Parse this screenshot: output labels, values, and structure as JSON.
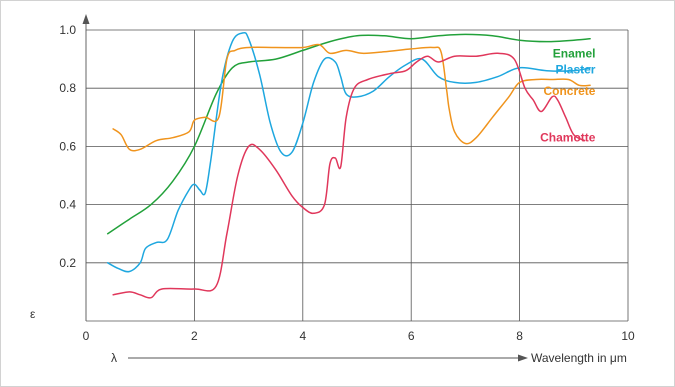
{
  "chart_data": {
    "type": "line",
    "xlabel": "Wavelength in μm",
    "x_symbol": "λ",
    "ylabel": "ε",
    "xlim": [
      0,
      10
    ],
    "ylim": [
      0,
      1.0
    ],
    "x_ticks": [
      0,
      2,
      4,
      6,
      8,
      10
    ],
    "y_ticks": [
      0.2,
      0.4,
      0.6,
      0.8,
      1.0
    ],
    "x_tick_labels": [
      "0",
      "2",
      "4",
      "6",
      "8",
      "10"
    ],
    "y_tick_labels": [
      "0.2",
      "0.4",
      "0.6",
      "0.8",
      "1.0"
    ],
    "grid": true,
    "series": [
      {
        "name": "Enamel",
        "color": "#22a13a",
        "x": [
          0.4,
          0.8,
          1.2,
          1.6,
          2.0,
          2.4,
          2.7,
          3.0,
          3.5,
          4.0,
          4.5,
          5.0,
          5.5,
          6.0,
          6.5,
          7.0,
          7.5,
          8.0,
          8.5,
          9.0,
          9.3
        ],
        "y": [
          0.3,
          0.35,
          0.4,
          0.48,
          0.6,
          0.78,
          0.87,
          0.89,
          0.9,
          0.93,
          0.96,
          0.98,
          0.98,
          0.97,
          0.98,
          0.985,
          0.98,
          0.965,
          0.96,
          0.965,
          0.97
        ]
      },
      {
        "name": "Plaster",
        "color": "#1ea7df",
        "x": [
          0.4,
          0.6,
          0.8,
          1.0,
          1.1,
          1.3,
          1.5,
          1.7,
          1.9,
          2.0,
          2.1,
          2.2,
          2.3,
          2.5,
          2.7,
          2.9,
          3.0,
          3.2,
          3.4,
          3.6,
          3.8,
          4.0,
          4.2,
          4.4,
          4.6,
          4.7,
          4.8,
          5.0,
          5.3,
          5.6,
          5.9,
          6.2,
          6.5,
          6.8,
          7.2,
          7.6,
          8.0,
          8.5,
          9.0,
          9.3
        ],
        "y": [
          0.2,
          0.18,
          0.17,
          0.2,
          0.25,
          0.27,
          0.28,
          0.38,
          0.45,
          0.47,
          0.45,
          0.44,
          0.55,
          0.82,
          0.96,
          0.99,
          0.97,
          0.85,
          0.68,
          0.58,
          0.58,
          0.68,
          0.82,
          0.9,
          0.89,
          0.84,
          0.78,
          0.77,
          0.79,
          0.84,
          0.88,
          0.9,
          0.84,
          0.82,
          0.82,
          0.84,
          0.87,
          0.86,
          0.86,
          0.87
        ]
      },
      {
        "name": "Concrete",
        "color": "#f0941d",
        "x": [
          0.5,
          0.65,
          0.8,
          1.0,
          1.3,
          1.6,
          1.9,
          2.0,
          2.2,
          2.45,
          2.6,
          2.75,
          3.0,
          3.5,
          4.0,
          4.3,
          4.5,
          4.8,
          5.1,
          5.5,
          6.0,
          6.4,
          6.55,
          6.65,
          6.7,
          6.8,
          7.0,
          7.2,
          7.5,
          7.8,
          8.0,
          8.3,
          8.6,
          8.9,
          9.1,
          9.3
        ],
        "y": [
          0.66,
          0.64,
          0.59,
          0.59,
          0.62,
          0.63,
          0.65,
          0.69,
          0.7,
          0.7,
          0.9,
          0.93,
          0.94,
          0.94,
          0.94,
          0.95,
          0.92,
          0.93,
          0.92,
          0.925,
          0.935,
          0.94,
          0.925,
          0.8,
          0.73,
          0.65,
          0.61,
          0.63,
          0.7,
          0.77,
          0.82,
          0.83,
          0.83,
          0.83,
          0.81,
          0.81
        ]
      },
      {
        "name": "Chamotte",
        "color": "#e0375b",
        "x": [
          0.5,
          0.8,
          1.0,
          1.2,
          1.4,
          2.0,
          2.4,
          2.6,
          2.8,
          3.0,
          3.2,
          3.5,
          3.8,
          4.0,
          4.2,
          4.4,
          4.5,
          4.6,
          4.7,
          4.8,
          4.95,
          5.2,
          5.6,
          5.9,
          6.1,
          6.3,
          6.5,
          6.8,
          7.2,
          7.6,
          7.9,
          8.1,
          8.25,
          8.4,
          8.6,
          8.7,
          8.85,
          9.0,
          9.2
        ],
        "y": [
          0.09,
          0.1,
          0.09,
          0.08,
          0.11,
          0.11,
          0.12,
          0.3,
          0.5,
          0.6,
          0.59,
          0.52,
          0.43,
          0.39,
          0.37,
          0.4,
          0.54,
          0.56,
          0.53,
          0.7,
          0.8,
          0.83,
          0.85,
          0.86,
          0.89,
          0.91,
          0.89,
          0.91,
          0.91,
          0.92,
          0.9,
          0.8,
          0.76,
          0.72,
          0.77,
          0.76,
          0.7,
          0.64,
          0.62
        ]
      }
    ]
  }
}
